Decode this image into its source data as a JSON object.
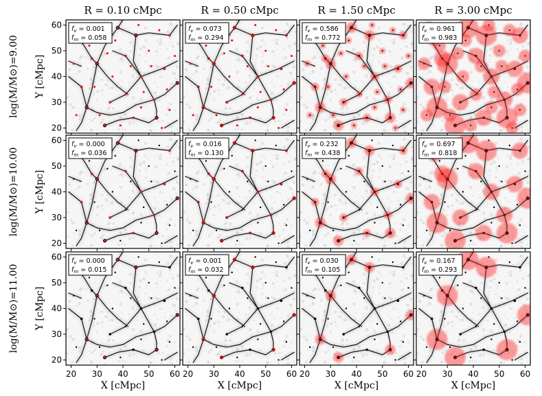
{
  "chart_data": {
    "type": "image-grid",
    "col_titles": [
      "R = 0.10 cMpc",
      "R = 0.50 cMpc",
      "R = 1.50 cMpc",
      "R = 3.00 cMpc"
    ],
    "row_labels": [
      "log(M/M⊙)=9.00",
      "log(M/M⊙)=10.00",
      "log(M/M⊙)=11.00"
    ],
    "xlabel": "X [cMpc]",
    "ylabel": "Y [cMpc]",
    "xlim": [
      18,
      62
    ],
    "ylim": [
      18,
      62
    ],
    "xticks": [
      20,
      30,
      40,
      50,
      60
    ],
    "yticks": [
      20,
      30,
      40,
      50,
      60
    ],
    "radii_cMpc": [
      0.1,
      0.5,
      1.5,
      3.0
    ],
    "log_mass": [
      9.0,
      10.0,
      11.0
    ],
    "panels": [
      [
        {
          "fv": "0.001",
          "fm": "0.058"
        },
        {
          "fv": "0.073",
          "fm": "0.294"
        },
        {
          "fv": "0.586",
          "fm": "0.772"
        },
        {
          "fv": "0.961",
          "fm": "0.983"
        }
      ],
      [
        {
          "fv": "0.000",
          "fm": "0.036"
        },
        {
          "fv": "0.016",
          "fm": "0.130"
        },
        {
          "fv": "0.232",
          "fm": "0.438"
        },
        {
          "fv": "0.697",
          "fm": "0.818"
        }
      ],
      [
        {
          "fv": "0.000",
          "fm": "0.015"
        },
        {
          "fv": "0.001",
          "fm": "0.032"
        },
        {
          "fv": "0.030",
          "fm": "0.105"
        },
        {
          "fv": "0.167",
          "fm": "0.293"
        }
      ]
    ],
    "annotation_labels": {
      "fv_prefix": "f",
      "fv_sub": "v",
      "fm_prefix": "f",
      "fm_sub": "m"
    },
    "halos": [
      {
        "x": 26,
        "y": 28,
        "logm": 11
      },
      {
        "x": 30,
        "y": 45,
        "logm": 11
      },
      {
        "x": 38,
        "y": 59,
        "logm": 11
      },
      {
        "x": 45,
        "y": 56,
        "logm": 11
      },
      {
        "x": 53,
        "y": 24,
        "logm": 11
      },
      {
        "x": 61,
        "y": 37.5,
        "logm": 11
      },
      {
        "x": 33,
        "y": 21,
        "logm": 11
      },
      {
        "x": 28,
        "y": 47,
        "logm": 10
      },
      {
        "x": 47,
        "y": 40,
        "logm": 10
      },
      {
        "x": 52,
        "y": 31,
        "logm": 10
      },
      {
        "x": 35,
        "y": 30,
        "logm": 10
      },
      {
        "x": 25,
        "y": 55,
        "logm": 10
      },
      {
        "x": 58,
        "y": 56,
        "logm": 10
      },
      {
        "x": 41,
        "y": 48,
        "logm": 10
      },
      {
        "x": 24,
        "y": 36,
        "logm": 10
      },
      {
        "x": 44,
        "y": 24,
        "logm": 10
      },
      {
        "x": 56,
        "y": 43,
        "logm": 10
      },
      {
        "x": 33,
        "y": 57,
        "logm": 10
      },
      {
        "x": 21,
        "y": 45,
        "logm": 9
      },
      {
        "x": 36,
        "y": 40,
        "logm": 9
      },
      {
        "x": 50,
        "y": 50,
        "logm": 9
      },
      {
        "x": 58,
        "y": 27,
        "logm": 9
      },
      {
        "x": 41,
        "y": 33,
        "logm": 9
      },
      {
        "x": 29,
        "y": 36,
        "logm": 9
      },
      {
        "x": 46,
        "y": 60,
        "logm": 9
      },
      {
        "x": 22,
        "y": 25,
        "logm": 9
      },
      {
        "x": 54,
        "y": 58,
        "logm": 9
      },
      {
        "x": 39,
        "y": 21,
        "logm": 9
      },
      {
        "x": 48,
        "y": 34,
        "logm": 9
      },
      {
        "x": 60,
        "y": 48,
        "logm": 9
      },
      {
        "x": 27,
        "y": 52,
        "logm": 9
      },
      {
        "x": 34,
        "y": 49,
        "logm": 9
      },
      {
        "x": 57,
        "y": 35,
        "logm": 9
      },
      {
        "x": 43,
        "y": 44,
        "logm": 9
      },
      {
        "x": 31,
        "y": 25,
        "logm": 9
      },
      {
        "x": 51,
        "y": 44,
        "logm": 9
      },
      {
        "x": 23,
        "y": 59,
        "logm": 9
      },
      {
        "x": 37,
        "y": 54,
        "logm": 9
      },
      {
        "x": 55,
        "y": 20,
        "logm": 9
      },
      {
        "x": 47,
        "y": 28,
        "logm": 9
      }
    ],
    "filaments": [
      [
        [
          20,
          58
        ],
        [
          25,
          52
        ],
        [
          28,
          47
        ],
        [
          30,
          45
        ]
      ],
      [
        [
          30,
          45
        ],
        [
          34,
          40
        ],
        [
          38,
          36
        ],
        [
          42,
          33
        ]
      ],
      [
        [
          30,
          45
        ],
        [
          33,
          52
        ],
        [
          38,
          59
        ],
        [
          40,
          62
        ]
      ],
      [
        [
          26,
          28
        ],
        [
          28,
          35
        ],
        [
          29,
          40
        ],
        [
          30,
          45
        ]
      ],
      [
        [
          26,
          28
        ],
        [
          24,
          22
        ],
        [
          22,
          19
        ]
      ],
      [
        [
          26,
          28
        ],
        [
          30,
          26
        ],
        [
          35,
          25
        ],
        [
          40,
          26
        ],
        [
          45,
          29
        ],
        [
          52,
          31
        ]
      ],
      [
        [
          52,
          31
        ],
        [
          56,
          33
        ],
        [
          61,
          37.5
        ]
      ],
      [
        [
          52,
          31
        ],
        [
          53,
          27
        ],
        [
          53,
          24
        ]
      ],
      [
        [
          47,
          40
        ],
        [
          52,
          31
        ]
      ],
      [
        [
          47,
          40
        ],
        [
          44,
          46
        ],
        [
          45,
          56
        ]
      ],
      [
        [
          45,
          56
        ],
        [
          50,
          57
        ],
        [
          58,
          56
        ]
      ],
      [
        [
          38,
          59
        ],
        [
          45,
          56
        ]
      ],
      [
        [
          47,
          40
        ],
        [
          55,
          43
        ],
        [
          61,
          46
        ]
      ],
      [
        [
          41,
          48
        ],
        [
          47,
          40
        ]
      ],
      [
        [
          19,
          40
        ],
        [
          24,
          36
        ],
        [
          26,
          28
        ]
      ],
      [
        [
          35,
          30
        ],
        [
          41,
          33
        ],
        [
          47,
          40
        ]
      ],
      [
        [
          33,
          21
        ],
        [
          38,
          23
        ],
        [
          44,
          24
        ],
        [
          50,
          22
        ],
        [
          53,
          24
        ]
      ],
      [
        [
          25,
          55
        ],
        [
          20,
          58
        ]
      ],
      [
        [
          58,
          56
        ],
        [
          61,
          60
        ]
      ],
      [
        [
          36,
          50
        ],
        [
          41,
          48
        ]
      ],
      [
        [
          24,
          44
        ],
        [
          19,
          46
        ]
      ],
      [
        [
          56,
          20
        ],
        [
          61,
          23
        ]
      ]
    ]
  }
}
